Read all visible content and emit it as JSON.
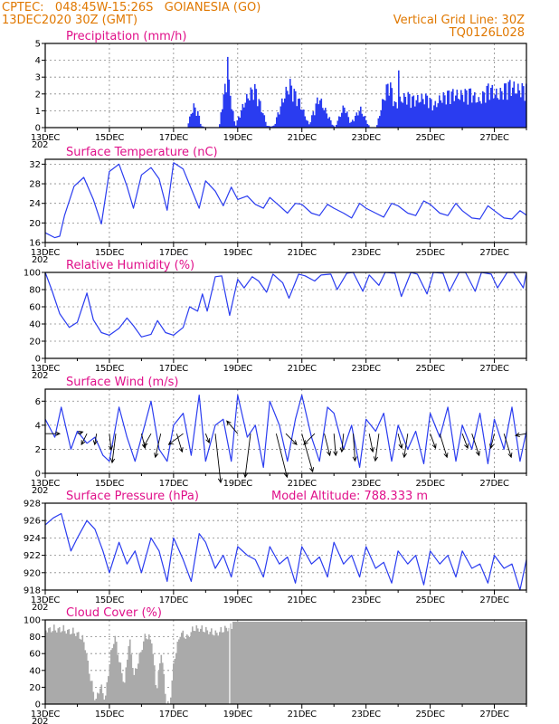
{
  "header": {
    "station": "CPTEC:   048:45W-15:26S   GOIANESIA (GO)",
    "run": "13DEC2020 30Z (GMT)",
    "grid_note": "Vertical Grid Line: 30Z",
    "model_code": "TQ0126L028"
  },
  "colors": {
    "header": "#e07800",
    "panel_title": "#e0108a",
    "series": "#2a3cf0",
    "cloud": "#aaaaaa",
    "grid": "#888888",
    "axis": "#000000"
  },
  "x_axis": {
    "start_day": 13,
    "end_day": 28,
    "labels": [
      {
        "day": 13,
        "text": "13DEC"
      },
      {
        "day": 15,
        "text": "15DEC"
      },
      {
        "day": 17,
        "text": "17DEC"
      },
      {
        "day": 19,
        "text": "19DEC"
      },
      {
        "day": 21,
        "text": "21DEC"
      },
      {
        "day": 23,
        "text": "23DEC"
      },
      {
        "day": 25,
        "text": "25DEC"
      },
      {
        "day": 27,
        "text": "27DEC"
      }
    ],
    "clipped_year_text": "202"
  },
  "chart_data": [
    {
      "id": "precip",
      "type": "bar",
      "title": "Precipitation (mm/h)",
      "ylim": [
        0,
        5
      ],
      "yticks": [
        0,
        1,
        2,
        3,
        4,
        5
      ],
      "grid": true,
      "knots_x": [
        13.0,
        17.4,
        17.5,
        17.6,
        17.75,
        17.85,
        18.0,
        18.4,
        18.55,
        18.7,
        18.9,
        19.2,
        19.5,
        19.7,
        19.9,
        20.1,
        20.4,
        20.6,
        20.9,
        21.2,
        21.5,
        21.8,
        22.0,
        22.3,
        22.5,
        22.8,
        23.1,
        23.3,
        23.5,
        23.7,
        23.9,
        24.1,
        24.3,
        24.5,
        24.7,
        24.9,
        25.1,
        25.3,
        25.6,
        25.9,
        26.2,
        26.5,
        26.8,
        27.1,
        27.4,
        27.7,
        28.0
      ],
      "knots_y": [
        0.0,
        0.0,
        0.8,
        1.5,
        1.0,
        0.1,
        0.0,
        0.0,
        2.5,
        3.0,
        0.1,
        1.8,
        2.8,
        1.5,
        0.1,
        0.1,
        2.0,
        3.0,
        1.8,
        0.2,
        2.1,
        0.8,
        0.0,
        1.5,
        0.3,
        1.3,
        0.0,
        0.0,
        1.8,
        3.2,
        1.5,
        2.0,
        2.2,
        1.9,
        2.0,
        2.1,
        1.5,
        2.0,
        2.4,
        2.2,
        2.5,
        1.8,
        2.8,
        2.2,
        3.0,
        2.6,
        2.8
      ],
      "peaks": [
        {
          "x": 18.65,
          "y": 4.2
        },
        {
          "x": 24.0,
          "y": 3.4
        }
      ]
    },
    {
      "id": "temp",
      "type": "line",
      "title": "Surface Temperature (nC)",
      "ylim": [
        16,
        33
      ],
      "yticks": [
        16,
        20,
        24,
        28,
        32
      ],
      "grid": true,
      "x": [
        13.0,
        13.3,
        13.45,
        13.6,
        13.9,
        14.2,
        14.5,
        14.75,
        15.0,
        15.3,
        15.55,
        15.75,
        16.0,
        16.3,
        16.55,
        16.8,
        17.0,
        17.3,
        17.55,
        17.8,
        18.0,
        18.3,
        18.55,
        18.8,
        19.0,
        19.3,
        19.55,
        19.8,
        20.0,
        20.3,
        20.55,
        20.8,
        21.0,
        21.3,
        21.55,
        21.8,
        22.0,
        22.3,
        22.55,
        22.8,
        23.0,
        23.3,
        23.55,
        23.8,
        24.0,
        24.3,
        24.55,
        24.8,
        25.0,
        25.3,
        25.55,
        25.8,
        26.0,
        26.3,
        26.55,
        26.8,
        27.0,
        27.3,
        27.55,
        27.8,
        28.0
      ],
      "values": [
        18.0,
        17.0,
        17.3,
        21.5,
        27.5,
        29.3,
        24.8,
        19.8,
        30.5,
        32.0,
        27.5,
        23.0,
        29.8,
        31.3,
        29.0,
        22.6,
        32.3,
        31.0,
        27.0,
        23.0,
        28.6,
        26.5,
        23.5,
        27.3,
        24.8,
        25.5,
        23.8,
        23.0,
        25.2,
        23.5,
        22.0,
        24.0,
        23.8,
        22.0,
        21.5,
        23.8,
        23.0,
        22.0,
        21.0,
        24.0,
        23.0,
        22.0,
        21.2,
        24.0,
        23.5,
        22.0,
        21.5,
        24.5,
        23.8,
        22.0,
        21.5,
        24.0,
        22.5,
        21.0,
        20.8,
        23.5,
        22.5,
        21.0,
        20.8,
        22.5,
        21.6
      ]
    },
    {
      "id": "humidity",
      "type": "line",
      "title": "Relative Humidity (%)",
      "ylim": [
        0,
        100
      ],
      "yticks": [
        0,
        20,
        40,
        60,
        80,
        100
      ],
      "grid": true,
      "x": [
        13.0,
        13.2,
        13.45,
        13.75,
        14.0,
        14.3,
        14.5,
        14.75,
        15.0,
        15.3,
        15.55,
        15.75,
        16.0,
        16.3,
        16.5,
        16.75,
        17.0,
        17.3,
        17.5,
        17.75,
        17.9,
        18.05,
        18.3,
        18.5,
        18.75,
        19.0,
        19.2,
        19.45,
        19.65,
        19.9,
        20.1,
        20.4,
        20.6,
        20.9,
        21.1,
        21.4,
        21.6,
        21.9,
        22.1,
        22.4,
        22.6,
        22.9,
        23.1,
        23.4,
        23.6,
        23.9,
        24.1,
        24.4,
        24.6,
        24.9,
        25.1,
        25.4,
        25.6,
        25.9,
        26.1,
        26.4,
        26.6,
        26.9,
        27.1,
        27.4,
        27.6,
        27.9,
        28.0
      ],
      "values": [
        100,
        80,
        52,
        36,
        42,
        76,
        45,
        30,
        27,
        35,
        47,
        38,
        25,
        28,
        44,
        30,
        27,
        36,
        60,
        55,
        75,
        55,
        95,
        96,
        50,
        92,
        82,
        95,
        90,
        77,
        98,
        88,
        70,
        98,
        96,
        90,
        97,
        98,
        80,
        99,
        100,
        78,
        97,
        85,
        100,
        99,
        72,
        100,
        98,
        75,
        100,
        99,
        78,
        100,
        100,
        78,
        100,
        98,
        82,
        100,
        100,
        82,
        100
      ]
    },
    {
      "id": "wind",
      "type": "line",
      "title": "Surface Wind (m/s)",
      "ylim": [
        0,
        7
      ],
      "yticks": [
        0,
        2,
        4,
        6
      ],
      "grid": true,
      "x": [
        13.0,
        13.3,
        13.5,
        13.8,
        14.0,
        14.3,
        14.55,
        14.8,
        15.0,
        15.3,
        15.55,
        15.8,
        16.0,
        16.3,
        16.55,
        16.8,
        17.0,
        17.3,
        17.55,
        17.8,
        18.0,
        18.3,
        18.55,
        18.8,
        19.0,
        19.3,
        19.55,
        19.8,
        20.0,
        20.3,
        20.55,
        20.8,
        21.0,
        21.3,
        21.55,
        21.8,
        22.0,
        22.3,
        22.55,
        22.8,
        23.0,
        23.3,
        23.55,
        23.8,
        24.0,
        24.3,
        24.55,
        24.8,
        25.0,
        25.3,
        25.55,
        25.8,
        26.0,
        26.3,
        26.55,
        26.8,
        27.0,
        27.3,
        27.55,
        27.8,
        28.0
      ],
      "values": [
        4.5,
        3.0,
        5.5,
        2.0,
        3.5,
        2.5,
        3.0,
        1.5,
        1.0,
        5.5,
        3.0,
        1.0,
        3.0,
        6.0,
        2.0,
        1.0,
        4.0,
        5.0,
        1.5,
        6.5,
        1.0,
        4.0,
        4.5,
        1.0,
        6.5,
        3.0,
        4.0,
        0.5,
        6.0,
        4.0,
        1.0,
        4.5,
        6.5,
        3.0,
        1.0,
        5.5,
        5.0,
        2.0,
        4.0,
        0.5,
        4.5,
        3.5,
        5.0,
        1.0,
        4.0,
        2.0,
        3.5,
        0.8,
        5.0,
        3.0,
        5.5,
        1.0,
        4.0,
        2.0,
        5.0,
        0.8,
        4.5,
        2.0,
        5.5,
        1.0,
        3.5
      ],
      "vectors": [
        {
          "x": 13.0,
          "y": 3.3,
          "u": 0.8,
          "v": 0.0
        },
        {
          "x": 14.0,
          "y": 3.3,
          "u": 0.3,
          "v": 0.1
        },
        {
          "x": 14.3,
          "y": 3.3,
          "u": -0.3,
          "v": -0.6
        },
        {
          "x": 14.6,
          "y": 3.3,
          "u": -0.1,
          "v": -0.6
        },
        {
          "x": 15.0,
          "y": 3.3,
          "u": 0.1,
          "v": -0.9
        },
        {
          "x": 15.2,
          "y": 3.3,
          "u": -0.2,
          "v": -1.6
        },
        {
          "x": 16.0,
          "y": 3.3,
          "u": 0.2,
          "v": -0.8
        },
        {
          "x": 16.3,
          "y": 3.3,
          "u": -0.4,
          "v": -0.7
        },
        {
          "x": 16.6,
          "y": 3.3,
          "u": -0.3,
          "v": -1.3
        },
        {
          "x": 17.1,
          "y": 3.3,
          "u": 0.3,
          "v": -1.0
        },
        {
          "x": 17.3,
          "y": 3.3,
          "u": -0.8,
          "v": -0.6
        },
        {
          "x": 18.0,
          "y": 3.3,
          "u": 0.2,
          "v": -0.5
        },
        {
          "x": 18.3,
          "y": 3.3,
          "u": 0.3,
          "v": -2.7
        },
        {
          "x": 19.0,
          "y": 3.3,
          "u": -0.6,
          "v": 0.7
        },
        {
          "x": 19.4,
          "y": 3.3,
          "u": -0.3,
          "v": -2.4
        },
        {
          "x": 20.2,
          "y": 3.3,
          "u": 0.6,
          "v": -2.4
        },
        {
          "x": 20.5,
          "y": 3.3,
          "u": 0.6,
          "v": -0.6
        },
        {
          "x": 21.0,
          "y": 3.3,
          "u": 0.6,
          "v": -2.1
        },
        {
          "x": 21.4,
          "y": 3.3,
          "u": -0.6,
          "v": -0.6
        },
        {
          "x": 21.7,
          "y": 3.3,
          "u": 0.3,
          "v": -1.2
        },
        {
          "x": 22.0,
          "y": 3.3,
          "u": 0.1,
          "v": -1.2
        },
        {
          "x": 22.3,
          "y": 3.3,
          "u": -0.1,
          "v": -1.0
        },
        {
          "x": 22.6,
          "y": 3.3,
          "u": 0.1,
          "v": -1.5
        },
        {
          "x": 23.1,
          "y": 3.3,
          "u": 0.2,
          "v": -1.0
        },
        {
          "x": 23.4,
          "y": 3.3,
          "u": -0.2,
          "v": -1.5
        },
        {
          "x": 24.0,
          "y": 3.3,
          "u": 0.2,
          "v": -0.8
        },
        {
          "x": 24.3,
          "y": 3.3,
          "u": -0.2,
          "v": -1.3
        },
        {
          "x": 25.0,
          "y": 3.3,
          "u": 0.3,
          "v": -0.8
        },
        {
          "x": 25.3,
          "y": 3.3,
          "u": 0.4,
          "v": -1.3
        },
        {
          "x": 26.0,
          "y": 3.3,
          "u": 0.3,
          "v": -0.8
        },
        {
          "x": 26.3,
          "y": 3.3,
          "u": 0.4,
          "v": -1.2
        },
        {
          "x": 27.0,
          "y": 3.3,
          "u": -0.2,
          "v": -0.8
        },
        {
          "x": 27.3,
          "y": 3.3,
          "u": 0.4,
          "v": -1.3
        },
        {
          "x": 28.0,
          "y": 3.3,
          "u": -0.6,
          "v": -0.1
        }
      ]
    },
    {
      "id": "pressure",
      "type": "line",
      "title": "Surface Pressure (hPa)",
      "altitude_label": "Model Altitude: 788.333 m",
      "ylim": [
        918,
        928
      ],
      "yticks": [
        918,
        920,
        922,
        924,
        926,
        928
      ],
      "grid": true,
      "x": [
        13.0,
        13.25,
        13.5,
        13.8,
        14.0,
        14.3,
        14.55,
        14.8,
        15.0,
        15.3,
        15.55,
        15.8,
        16.0,
        16.3,
        16.55,
        16.8,
        17.0,
        17.3,
        17.55,
        17.8,
        18.0,
        18.3,
        18.55,
        18.8,
        19.0,
        19.3,
        19.55,
        19.8,
        20.0,
        20.3,
        20.55,
        20.8,
        21.0,
        21.3,
        21.55,
        21.8,
        22.0,
        22.3,
        22.55,
        22.8,
        23.0,
        23.3,
        23.55,
        23.8,
        24.0,
        24.3,
        24.55,
        24.8,
        25.0,
        25.3,
        25.55,
        25.8,
        26.0,
        26.3,
        26.55,
        26.8,
        27.0,
        27.3,
        27.55,
        27.8,
        28.0
      ],
      "values": [
        925.5,
        926.3,
        926.8,
        922.5,
        924.0,
        926.0,
        925.0,
        922.5,
        920.0,
        923.5,
        921.0,
        922.5,
        920.0,
        924.0,
        922.5,
        919.0,
        924.0,
        921.5,
        919.0,
        924.5,
        923.5,
        920.5,
        922.0,
        919.5,
        923.0,
        922.0,
        921.5,
        919.5,
        923.0,
        921.0,
        921.8,
        918.8,
        923.0,
        921.0,
        921.8,
        919.5,
        923.5,
        921.0,
        922.0,
        919.5,
        923.0,
        920.5,
        921.2,
        918.8,
        922.5,
        921.0,
        922.0,
        918.6,
        922.5,
        921.0,
        922.0,
        919.5,
        922.5,
        920.5,
        921.0,
        918.8,
        922.0,
        920.5,
        921.0,
        918.0,
        921.5
      ]
    },
    {
      "id": "cloud",
      "type": "area",
      "title": "Cloud Cover (%)",
      "ylim": [
        0,
        100
      ],
      "yticks": [
        0,
        20,
        40,
        60,
        80,
        100
      ],
      "grid": true,
      "x": [
        13.0,
        13.5,
        14.0,
        14.2,
        14.4,
        14.55,
        14.7,
        14.85,
        15.0,
        15.15,
        15.3,
        15.45,
        15.6,
        15.75,
        15.9,
        16.1,
        16.3,
        16.45,
        16.6,
        16.75,
        16.85,
        17.0,
        17.2,
        17.4,
        17.6,
        17.8,
        18.0,
        18.3,
        18.6,
        18.8,
        19.0,
        28.0
      ],
      "values": [
        95,
        95,
        90,
        80,
        35,
        10,
        28,
        12,
        60,
        88,
        55,
        30,
        85,
        40,
        60,
        88,
        82,
        22,
        70,
        10,
        2,
        60,
        92,
        85,
        96,
        96,
        94,
        90,
        96,
        98,
        98,
        98
      ]
    }
  ]
}
